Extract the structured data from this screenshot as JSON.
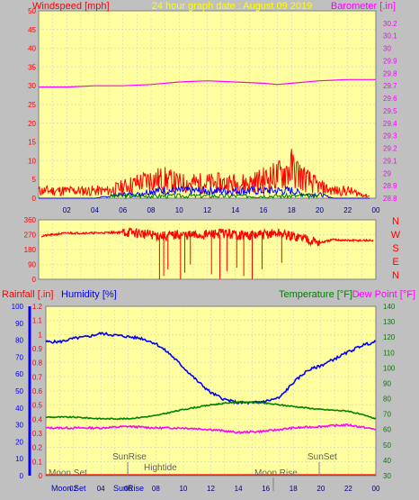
{
  "title": "24 hour graph date : August 09 2019",
  "colors": {
    "plot_bg": "#ffffa0",
    "grid": "#c8c8c8",
    "wind_avg": "#0000ff",
    "wind_gust": "#ff0000",
    "wind_green": "#008000",
    "barometer": "#ff00ff",
    "direction": "#ff0000",
    "humidity": "#0000ff",
    "temperature": "#008000",
    "dew_point": "#ff00ff",
    "rain": "#ff0000",
    "title": "#ffff00"
  },
  "x_ticks": [
    "02",
    "04",
    "06",
    "08",
    "10",
    "12",
    "14",
    "16",
    "18",
    "20",
    "22",
    "00"
  ],
  "chart_data": [
    {
      "type": "line",
      "name": "wind-barometer",
      "title": "24 hour graph date : August 09 2019",
      "ylabel_left": "Windspeed [mph]",
      "ylabel_right": "Barometer [.in]",
      "ylim_left": [
        0,
        50
      ],
      "yticks_left": [
        "0",
        "5",
        "10",
        "15",
        "20",
        "25",
        "30",
        "35",
        "40",
        "45",
        "50"
      ],
      "ylim_right": [
        28.8,
        30.3
      ],
      "yticks_right": [
        "28.8",
        "28.9",
        "29",
        "29.1",
        "29.2",
        "29.3",
        "29.4",
        "29.5",
        "29.6",
        "29.7",
        "29.8",
        "29.9",
        "30",
        "30.1",
        "30.2"
      ],
      "barometer_x": [
        0,
        2,
        4,
        6,
        8,
        10,
        12,
        14,
        16,
        17,
        18,
        20,
        22,
        24
      ],
      "barometer_y": [
        29.69,
        29.69,
        29.7,
        29.7,
        29.71,
        29.73,
        29.74,
        29.73,
        29.72,
        29.71,
        29.72,
        29.74,
        29.75,
        29.75
      ],
      "gust_x": [
        0,
        1,
        2,
        3,
        4,
        5,
        6,
        7,
        8,
        9,
        10,
        11,
        12,
        13,
        14,
        15,
        16,
        17,
        18,
        19,
        20,
        21,
        22,
        23,
        24
      ],
      "gust_y": [
        2,
        2,
        2,
        2,
        2,
        2,
        3,
        4,
        5,
        5,
        4,
        4,
        4,
        4,
        4,
        4,
        5,
        6,
        8,
        5,
        3,
        2,
        2,
        1,
        0
      ],
      "avg_x": [
        0,
        2,
        4,
        6,
        7,
        8,
        9,
        10,
        11,
        12,
        13,
        14,
        15,
        16,
        17,
        18,
        19,
        20,
        21,
        22,
        24
      ],
      "avg_y": [
        0,
        0,
        0,
        1,
        1,
        2,
        2,
        2,
        2,
        2,
        2,
        2,
        2,
        2,
        2,
        2,
        1,
        1,
        0,
        0,
        0
      ]
    },
    {
      "type": "line",
      "name": "wind-direction",
      "ylim": [
        0,
        360
      ],
      "yticks": [
        "0",
        "90",
        "180",
        "270",
        "360"
      ],
      "compass_labels": [
        "N",
        "W",
        "S",
        "E",
        "N"
      ],
      "x": [
        0,
        2,
        4,
        6,
        7,
        8,
        9,
        10,
        11,
        12,
        13,
        14,
        15,
        16,
        17,
        18,
        19,
        20,
        21,
        22,
        24
      ],
      "y": [
        260,
        280,
        280,
        285,
        280,
        270,
        260,
        270,
        265,
        270,
        280,
        270,
        265,
        270,
        280,
        260,
        250,
        220,
        240,
        235,
        235
      ]
    },
    {
      "type": "line",
      "name": "rain-humidity-temperature",
      "ylabel_left_rain": "Rainfall [.in]",
      "ylabel_left_humidity": "Humidity [%]",
      "ylabel_right_temp": "Temperature [°F]",
      "ylabel_right_dew": "Dew Point [°F]",
      "ylim_rain": [
        0,
        1.2
      ],
      "yticks_rain": [
        "0",
        "0.1",
        "0.2",
        "0.3",
        "0.4",
        "0.5",
        "0.6",
        "0.7",
        "0.8",
        "0.9",
        "1",
        "1.1",
        "1.2"
      ],
      "ylim_humidity": [
        0,
        100
      ],
      "yticks_humidity": [
        "0",
        "10",
        "20",
        "30",
        "40",
        "50",
        "60",
        "70",
        "80",
        "90",
        "100"
      ],
      "ylim_temp": [
        30,
        140
      ],
      "yticks_temp": [
        "30",
        "40",
        "50",
        "60",
        "70",
        "80",
        "90",
        "100",
        "110",
        "120",
        "130",
        "140"
      ],
      "humidity": {
        "x": [
          0,
          1,
          2,
          3,
          4,
          5,
          6,
          7,
          8,
          9,
          10,
          11,
          12,
          13,
          14,
          15,
          16,
          17,
          18,
          19,
          20,
          21,
          22,
          23,
          24
        ],
        "y": [
          79,
          79,
          81,
          82,
          84,
          83,
          82,
          81,
          78,
          72,
          64,
          56,
          49,
          45,
          43,
          43,
          44,
          46,
          55,
          62,
          65,
          69,
          73,
          77,
          79
        ]
      },
      "temperature": {
        "x": [
          0,
          2,
          4,
          6,
          8,
          10,
          12,
          14,
          16,
          18,
          20,
          22,
          24
        ],
        "y": [
          68,
          68,
          67,
          67,
          69,
          73,
          76,
          78,
          77,
          75,
          73,
          72,
          67
        ]
      },
      "dew_point": {
        "x": [
          0,
          2,
          4,
          6,
          8,
          10,
          12,
          14,
          16,
          18,
          20,
          22,
          24
        ],
        "y": [
          61,
          61,
          61,
          62,
          61,
          61,
          60,
          58,
          59,
          61,
          62,
          63,
          60
        ]
      },
      "rain": {
        "x": [
          0,
          24
        ],
        "y": [
          0,
          0
        ]
      },
      "annotations": {
        "moon_set": "Moon Set",
        "sunrise": "SunRise",
        "hightide": "Hightide",
        "moon_rise": "Moon Rise",
        "sunset": "SunSet",
        "bottom_moonset": "Moon Set",
        "bottom_sunrise": "SunRise"
      }
    }
  ]
}
